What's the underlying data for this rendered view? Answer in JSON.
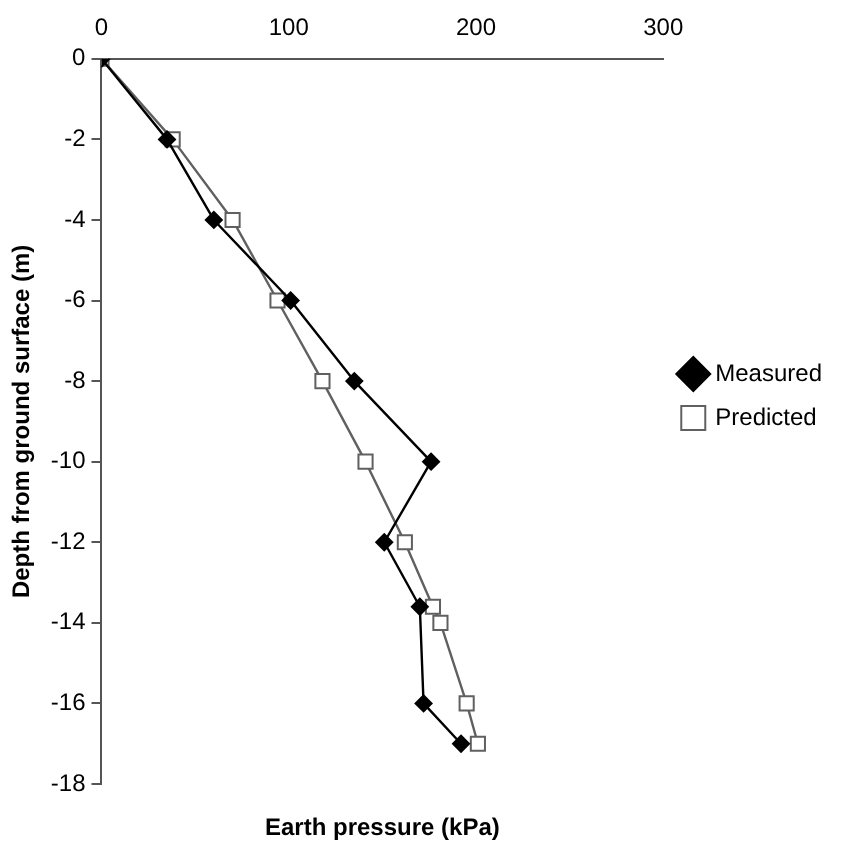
{
  "chart_data": {
    "type": "line",
    "xlabel": "Earth pressure (kPa)",
    "ylabel": "Depth from ground surface (m)",
    "xlim": [
      0,
      300
    ],
    "xticks": [
      0,
      100,
      200,
      300
    ],
    "ylim": [
      -18,
      0
    ],
    "yticks": [
      -18,
      -16,
      -14,
      -12,
      -10,
      -8,
      -6,
      -4,
      -2,
      0
    ],
    "grid": false,
    "legend": "right",
    "series": [
      {
        "name": "Measured",
        "color": "#000000",
        "marker": "diamond",
        "x": [
          0,
          35,
          60,
          101,
          135,
          176,
          151,
          170,
          172,
          192
        ],
        "values": [
          0,
          -2,
          -4,
          -6,
          -8,
          -10,
          -12,
          -13.6,
          -16,
          -17
        ]
      },
      {
        "name": "Predicted",
        "color": "#606060",
        "marker": "square",
        "x": [
          0,
          38,
          70,
          94,
          118,
          141,
          162,
          177,
          181,
          195,
          201
        ],
        "values": [
          0,
          -2,
          -4,
          -6,
          -8,
          -10,
          -12,
          -13.6,
          -14,
          -16,
          -17
        ]
      }
    ]
  }
}
